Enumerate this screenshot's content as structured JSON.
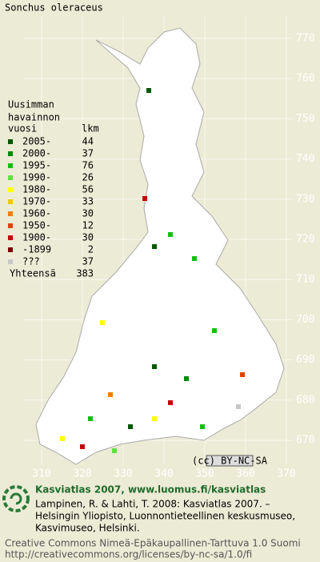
{
  "title": "Sonchus oleraceus",
  "legend": {
    "heading": [
      "Uusimman",
      "havainnon",
      "vuosi"
    ],
    "count_heading": "lkm",
    "rows": [
      {
        "label": "2005-",
        "count": 44,
        "color": "#005800"
      },
      {
        "label": "2000-",
        "count": 37,
        "color": "#008a00"
      },
      {
        "label": "1995-",
        "count": 76,
        "color": "#10c010"
      },
      {
        "label": "1990-",
        "count": 26,
        "color": "#60e040"
      },
      {
        "label": "1980-",
        "count": 56,
        "color": "#ffff00"
      },
      {
        "label": "1970-",
        "count": 33,
        "color": "#f0c800"
      },
      {
        "label": "1960-",
        "count": 30,
        "color": "#f08000"
      },
      {
        "label": "1950-",
        "count": 12,
        "color": "#e84000"
      },
      {
        "label": "1900-",
        "count": 30,
        "color": "#c80000"
      },
      {
        "label": "-1899",
        "count": 2,
        "color": "#800000"
      },
      {
        "label": "???",
        "count": 37,
        "color": "#c8c8c8"
      }
    ],
    "total_label": "Yhteensä",
    "total": 383
  },
  "axes": {
    "north": [
      770,
      760,
      750,
      740,
      730,
      720,
      710,
      700,
      690,
      680,
      670
    ],
    "east": [
      310,
      320,
      330,
      340,
      350,
      360,
      370
    ]
  },
  "license_badge": "(cc) BY-NC-SA",
  "footer": {
    "heading": "Kasviatlas 2007, www.luomus.fi/kasviatlas",
    "citation": [
      "Lampinen, R. & Lahti, T. 2008: Kasviatlas 2007. –",
      "Helsingin Yliopisto, Luonnontieteellinen keskusmuseo,",
      "Kasvimuseo, Helsinki."
    ],
    "license": [
      "Creative Commons Nimeä-Epäkaupallinen-Tarttuva 1.0 Suomi",
      "http://creativecommons.org/licenses/by-nc-sa/1.0/fi"
    ]
  }
}
